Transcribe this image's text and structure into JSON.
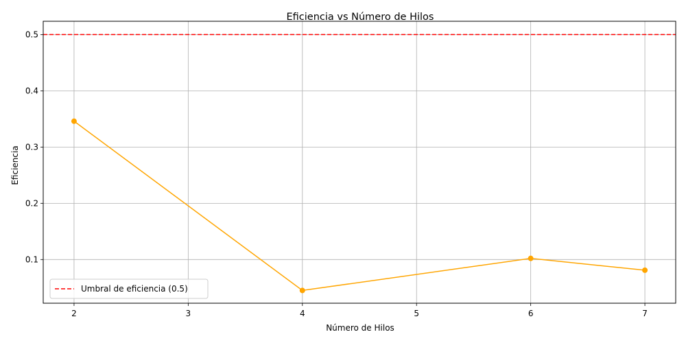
{
  "chart_data": {
    "type": "line",
    "title": "Eficiencia vs Número de Hilos",
    "xlabel": "Número de Hilos",
    "ylabel": "Eficiencia",
    "x": [
      2,
      4,
      6,
      7
    ],
    "series": [
      {
        "values": [
          0.346,
          0.045,
          0.102,
          0.081
        ],
        "color": "#ffa500",
        "marker": "circle"
      }
    ],
    "threshold": {
      "name": "Umbral de eficiencia (0.5)",
      "value": 0.5,
      "color": "#ff0000",
      "style": "dashed"
    },
    "xlim": [
      1.73,
      7.27
    ],
    "ylim": [
      0.0223,
      0.5237
    ],
    "xticks": [
      "2",
      "3",
      "4",
      "5",
      "6",
      "7"
    ],
    "yticks": [
      "0.1",
      "0.2",
      "0.3",
      "0.4",
      "0.5"
    ],
    "grid": true,
    "legend_position": "lower-left"
  }
}
